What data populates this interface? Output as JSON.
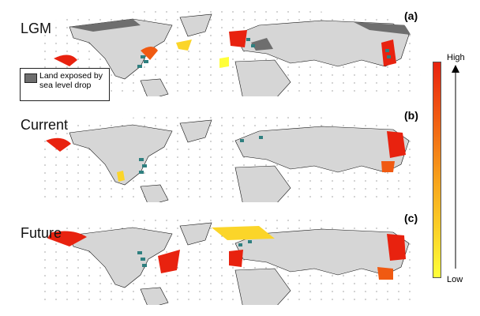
{
  "panels": [
    {
      "title": "LGM",
      "letter": "(a)"
    },
    {
      "title": "Current",
      "letter": "(b)"
    },
    {
      "title": "Future",
      "letter": "(c)"
    }
  ],
  "legend": {
    "label": "Land exposed by sea level drop",
    "swatch_color": "#6e6e6e"
  },
  "colorbar": {
    "high": "High",
    "low": "Low",
    "colors": [
      "#e8220f",
      "#f05a12",
      "#f7a31c",
      "#fbd529",
      "#ffff3a"
    ]
  },
  "map_colors": {
    "land": "#d6d6d6",
    "exposed_land": "#6e6e6e",
    "observed_sites": "#2f7f7f"
  }
}
